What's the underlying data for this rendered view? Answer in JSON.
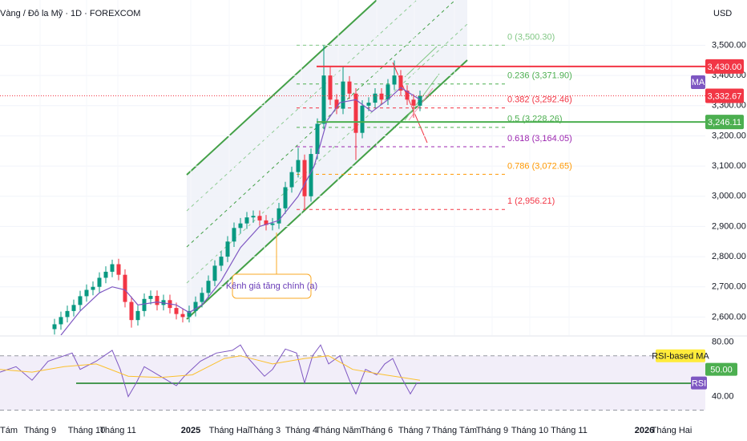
{
  "chart_data": [
    {
      "type": "candlestick",
      "title": "Vàng / Đô la Mỹ · 1D · FOREXCOM",
      "y_axis_label": "USD",
      "x": [
        34,
        38,
        42,
        46,
        50,
        54,
        58,
        62,
        66,
        70,
        74,
        78,
        82,
        86,
        90,
        94,
        98,
        102,
        106,
        110,
        114,
        118,
        122,
        126,
        130,
        134,
        138,
        142,
        146,
        150,
        154,
        158,
        162,
        166,
        170,
        174,
        178,
        182,
        186,
        190,
        194,
        198,
        202,
        206,
        210,
        214,
        218,
        222,
        226,
        230,
        234,
        238,
        242,
        246,
        250,
        254,
        258,
        262
      ],
      "open": [
        2560,
        2576,
        2600,
        2620,
        2640,
        2669,
        2690,
        2700,
        2730,
        2750,
        2775,
        2740,
        2650,
        2590,
        2620,
        2660,
        2670,
        2640,
        2656,
        2630,
        2610,
        2600,
        2620,
        2650,
        2680,
        2720,
        2770,
        2800,
        2850,
        2895,
        2910,
        2930,
        2935,
        2920,
        2905,
        2910,
        2960,
        3030,
        3080,
        3120,
        3000,
        3140,
        3240,
        3400,
        3320,
        3290,
        3380,
        3340,
        3210,
        3300,
        3310,
        3340,
        3320,
        3370,
        3400,
        3350,
        3320,
        3300
      ],
      "high": [
        2594,
        2618,
        2638,
        2658,
        2687,
        2708,
        2718,
        2748,
        2768,
        2790,
        2793,
        2758,
        2668,
        2638,
        2678,
        2688,
        2688,
        2674,
        2674,
        2648,
        2628,
        2638,
        2668,
        2698,
        2738,
        2788,
        2818,
        2868,
        2913,
        2928,
        2948,
        2953,
        2953,
        2938,
        2928,
        2978,
        3048,
        3098,
        3160,
        3138,
        3158,
        3258,
        3500,
        3430,
        3338,
        3430,
        3398,
        3358,
        3318,
        3328,
        3358,
        3358,
        3388,
        3450,
        3418,
        3368,
        3338,
        3350
      ],
      "low": [
        2542,
        2558,
        2582,
        2602,
        2622,
        2651,
        2672,
        2682,
        2712,
        2732,
        2722,
        2632,
        2565,
        2572,
        2602,
        2642,
        2622,
        2622,
        2612,
        2592,
        2582,
        2582,
        2602,
        2632,
        2662,
        2702,
        2752,
        2782,
        2832,
        2877,
        2892,
        2912,
        2902,
        2887,
        2887,
        2892,
        2942,
        3012,
        3062,
        2956,
        2982,
        3122,
        3222,
        3302,
        3272,
        3272,
        3322,
        3120,
        3192,
        3282,
        3292,
        3302,
        3302,
        3352,
        3332,
        3302,
        3260,
        3282
      ],
      "close": [
        2576,
        2600,
        2620,
        2640,
        2669,
        2690,
        2700,
        2730,
        2750,
        2775,
        2740,
        2650,
        2590,
        2620,
        2660,
        2670,
        2640,
        2656,
        2630,
        2610,
        2600,
        2620,
        2650,
        2680,
        2720,
        2770,
        2800,
        2850,
        2895,
        2910,
        2930,
        2935,
        2920,
        2905,
        2910,
        2960,
        3030,
        3080,
        3120,
        3000,
        3140,
        3240,
        3400,
        3320,
        3290,
        3380,
        3340,
        3210,
        3300,
        3310,
        3340,
        3320,
        3370,
        3400,
        3350,
        3320,
        3300,
        3332.67
      ],
      "up_color": "#089981",
      "down_color": "#f23645",
      "ma": {
        "name": "MA",
        "color": "#7e57c2",
        "x": [
          38,
          50,
          62,
          70,
          78,
          86,
          98,
          110,
          118,
          126,
          138,
          150,
          162,
          174,
          186,
          196,
          204,
          212,
          222,
          232,
          242,
          250,
          262
        ],
        "values": [
          2540,
          2620,
          2680,
          2700,
          2690,
          2640,
          2650,
          2640,
          2615,
          2640,
          2720,
          2830,
          2900,
          2920,
          3000,
          3100,
          3250,
          3310,
          3320,
          3280,
          3320,
          3360,
          3320
        ]
      },
      "xlim": [
        0,
        440
      ],
      "xticks": [
        {
          "value": -3,
          "label": "Tháng Tám"
        },
        {
          "value": 25,
          "label": "Tháng 9"
        },
        {
          "value": 54,
          "label": "Tháng 10"
        },
        {
          "value": 73.5,
          "label": "Tháng 11"
        },
        {
          "value": 119,
          "label": "2025"
        },
        {
          "value": 143,
          "label": "Tháng Hai"
        },
        {
          "value": 165,
          "label": "Tháng 3"
        },
        {
          "value": 188,
          "label": "Tháng 4"
        },
        {
          "value": 211,
          "label": "Tháng Năm"
        },
        {
          "value": 235,
          "label": "Tháng 6"
        },
        {
          "value": 258.5,
          "label": "Tháng 7"
        },
        {
          "value": 283.5,
          "label": "Tháng Tám"
        },
        {
          "value": 307,
          "label": "Tháng 9"
        },
        {
          "value": 330.5,
          "label": "Tháng 10"
        },
        {
          "value": 355,
          "label": "Tháng 11"
        },
        {
          "value": 402,
          "label": "2026"
        },
        {
          "value": 419,
          "label": "Tháng Hai"
        }
      ],
      "ylim": [
        2540,
        3650
      ],
      "yticks": [
        {
          "value": 3500,
          "label": "3,500.00"
        },
        {
          "value": 3400,
          "label": "3,400.00"
        },
        {
          "value": 3300,
          "label": "3,300.00"
        },
        {
          "value": 3200,
          "label": "3,200.00"
        },
        {
          "value": 3100,
          "label": "3,100.00"
        },
        {
          "value": 3000,
          "label": "3,000.00"
        },
        {
          "value": 2900,
          "label": "2,900.00"
        },
        {
          "value": 2800,
          "label": "2,800.00"
        },
        {
          "value": 2700,
          "label": "2,700.00"
        },
        {
          "value": 2600,
          "label": "2,600.00"
        }
      ],
      "fib_levels": [
        {
          "value": 3500.3,
          "label": "0 (3,500.30)",
          "color": "#81c784"
        },
        {
          "value": 3371.9,
          "label": "0.236 (3,371.90)",
          "color": "#4caf50"
        },
        {
          "value": 3292.46,
          "label": "0.382 (3,292.46)",
          "color": "#f23645"
        },
        {
          "value": 3228.26,
          "label": "0.5 (3,228.26)",
          "color": "#4caf50"
        },
        {
          "value": 3164.05,
          "label": "0.618 (3,164.05)",
          "color": "#9c27b0"
        },
        {
          "value": 3072.65,
          "label": "0.786 (3,072.65)",
          "color": "#ff9800"
        },
        {
          "value": 2956.21,
          "label": "1 (2,956.21)",
          "color": "#f23645"
        }
      ],
      "price_lines": [
        {
          "value": 3430,
          "label": "3,430.00",
          "color": "#f23645",
          "style": "solid"
        },
        {
          "value": 3332.67,
          "label": "3,332.67",
          "color": "#f23645",
          "style": "dotted"
        },
        {
          "value": 3246.11,
          "label": "3,246.11",
          "color": "#4caf50",
          "style": "solid"
        }
      ],
      "annotation": "Kênh giá tăng chính (a)"
    },
    {
      "type": "line",
      "series": [
        {
          "name": "RSI",
          "color": "#7e57c2",
          "x": [
            0,
            10,
            20,
            30,
            40,
            45,
            50,
            60,
            70,
            75,
            80,
            85,
            90,
            100,
            110,
            115,
            125,
            135,
            145,
            150,
            155,
            165,
            170,
            178,
            185,
            190,
            195,
            200,
            205,
            212,
            218,
            222,
            228,
            235,
            240,
            245,
            250,
            256,
            260,
            262
          ],
          "values": [
            58,
            62,
            52,
            66,
            70,
            72,
            60,
            66,
            74,
            60,
            40,
            50,
            62,
            55,
            48,
            55,
            66,
            72,
            74,
            78,
            68,
            55,
            60,
            75,
            72,
            50,
            70,
            78,
            64,
            70,
            52,
            42,
            60,
            56,
            64,
            68,
            55,
            42,
            50,
            50
          ]
        },
        {
          "name": "RSI-based MA",
          "color": "#fbc02d",
          "x": [
            0,
            20,
            40,
            60,
            80,
            100,
            120,
            140,
            150,
            170,
            190,
            205,
            220,
            240,
            262
          ],
          "values": [
            60,
            58,
            62,
            64,
            55,
            54,
            56,
            68,
            70,
            64,
            68,
            70,
            60,
            56,
            52
          ]
        }
      ],
      "band": [
        30,
        70
      ],
      "rsi_value": {
        "value": 50,
        "label": "50.00"
      },
      "xlim": [
        0,
        440
      ],
      "ylim": [
        25,
        84
      ],
      "yticks": [
        {
          "value": 80,
          "label": "80.00"
        },
        {
          "value": 40,
          "label": "40.00"
        }
      ]
    }
  ]
}
